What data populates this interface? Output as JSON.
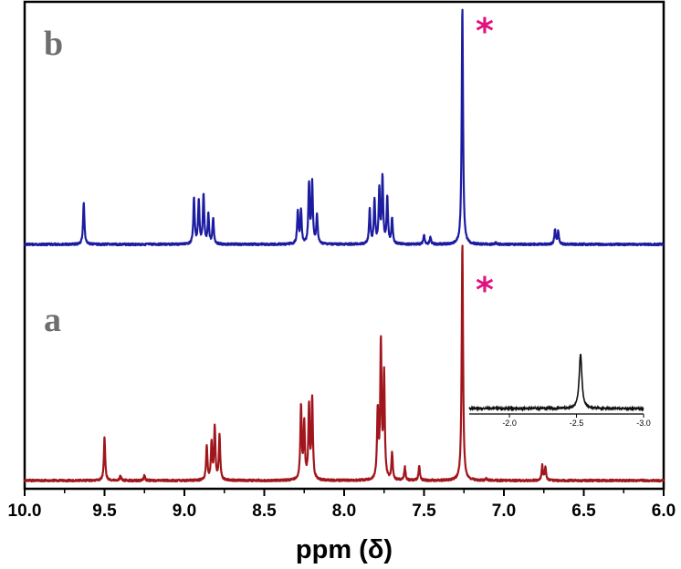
{
  "chart_data": {
    "type": "line",
    "title": "",
    "xlabel": "ppm (δ)",
    "ylabel": "",
    "xlim": [
      10.0,
      6.0
    ],
    "x_reversed": true,
    "x_ticks": [
      10.0,
      9.5,
      9.0,
      8.5,
      8.0,
      7.5,
      7.0,
      6.5,
      6.0
    ],
    "x_tick_labels": [
      "10.0",
      "9.5",
      "9.0",
      "8.5",
      "8.0",
      "7.5",
      "7.0",
      "6.5",
      "6.0"
    ],
    "grid": false,
    "legend": "none",
    "series": [
      {
        "label": "b",
        "color": "#1c1ca0",
        "peaks": [
          {
            "ppm": 9.63,
            "height": 0.23
          },
          {
            "ppm": 8.94,
            "height": 0.25
          },
          {
            "ppm": 8.91,
            "height": 0.24
          },
          {
            "ppm": 8.88,
            "height": 0.27
          },
          {
            "ppm": 8.85,
            "height": 0.16
          },
          {
            "ppm": 8.82,
            "height": 0.14
          },
          {
            "ppm": 8.29,
            "height": 0.18
          },
          {
            "ppm": 8.27,
            "height": 0.18
          },
          {
            "ppm": 8.22,
            "height": 0.33
          },
          {
            "ppm": 8.2,
            "height": 0.33
          },
          {
            "ppm": 8.17,
            "height": 0.16
          },
          {
            "ppm": 7.84,
            "height": 0.19
          },
          {
            "ppm": 7.81,
            "height": 0.24
          },
          {
            "ppm": 7.78,
            "height": 0.29
          },
          {
            "ppm": 7.76,
            "height": 0.36
          },
          {
            "ppm": 7.73,
            "height": 0.25
          },
          {
            "ppm": 7.7,
            "height": 0.14
          },
          {
            "ppm": 7.5,
            "height": 0.05
          },
          {
            "ppm": 7.46,
            "height": 0.04
          },
          {
            "ppm": 7.26,
            "height": 1.3
          },
          {
            "ppm": 7.05,
            "height": 0.01
          },
          {
            "ppm": 6.68,
            "height": 0.08
          },
          {
            "ppm": 6.66,
            "height": 0.07
          }
        ]
      },
      {
        "label": "a",
        "color": "#a0161c",
        "peaks": [
          {
            "ppm": 9.5,
            "height": 0.26
          },
          {
            "ppm": 9.4,
            "height": 0.03
          },
          {
            "ppm": 9.25,
            "height": 0.03
          },
          {
            "ppm": 8.86,
            "height": 0.21
          },
          {
            "ppm": 8.83,
            "height": 0.22
          },
          {
            "ppm": 8.81,
            "height": 0.32
          },
          {
            "ppm": 8.78,
            "height": 0.27
          },
          {
            "ppm": 8.27,
            "height": 0.45
          },
          {
            "ppm": 8.25,
            "height": 0.34
          },
          {
            "ppm": 8.22,
            "height": 0.44
          },
          {
            "ppm": 8.2,
            "height": 0.49
          },
          {
            "ppm": 7.79,
            "height": 0.41
          },
          {
            "ppm": 7.77,
            "height": 0.83
          },
          {
            "ppm": 7.75,
            "height": 0.63
          },
          {
            "ppm": 7.7,
            "height": 0.16
          },
          {
            "ppm": 7.62,
            "height": 0.08
          },
          {
            "ppm": 7.53,
            "height": 0.09
          },
          {
            "ppm": 7.26,
            "height": 1.45
          },
          {
            "ppm": 7.11,
            "height": 0.01
          },
          {
            "ppm": 6.76,
            "height": 0.09
          },
          {
            "ppm": 6.74,
            "height": 0.08
          }
        ]
      }
    ],
    "annotations": [
      {
        "text": "b",
        "color": "#6e6e6e"
      },
      {
        "text": "a",
        "color": "#6e6e6e"
      },
      {
        "text": "*",
        "color": "#e0117e",
        "ppm": 7.12,
        "series": "b"
      },
      {
        "text": "*",
        "color": "#e0117e",
        "ppm": 7.12,
        "series": "a"
      }
    ],
    "inset": {
      "type": "line",
      "color": "#111111",
      "xlim": [
        -1.7,
        -3.0
      ],
      "x_ticks": [
        -2.0,
        -2.5,
        -3.0
      ],
      "x_tick_labels": [
        "-2.0",
        "-2.5",
        "-3.0"
      ],
      "peaks": [
        {
          "ppm": -2.53,
          "height": 1.0
        }
      ]
    }
  }
}
